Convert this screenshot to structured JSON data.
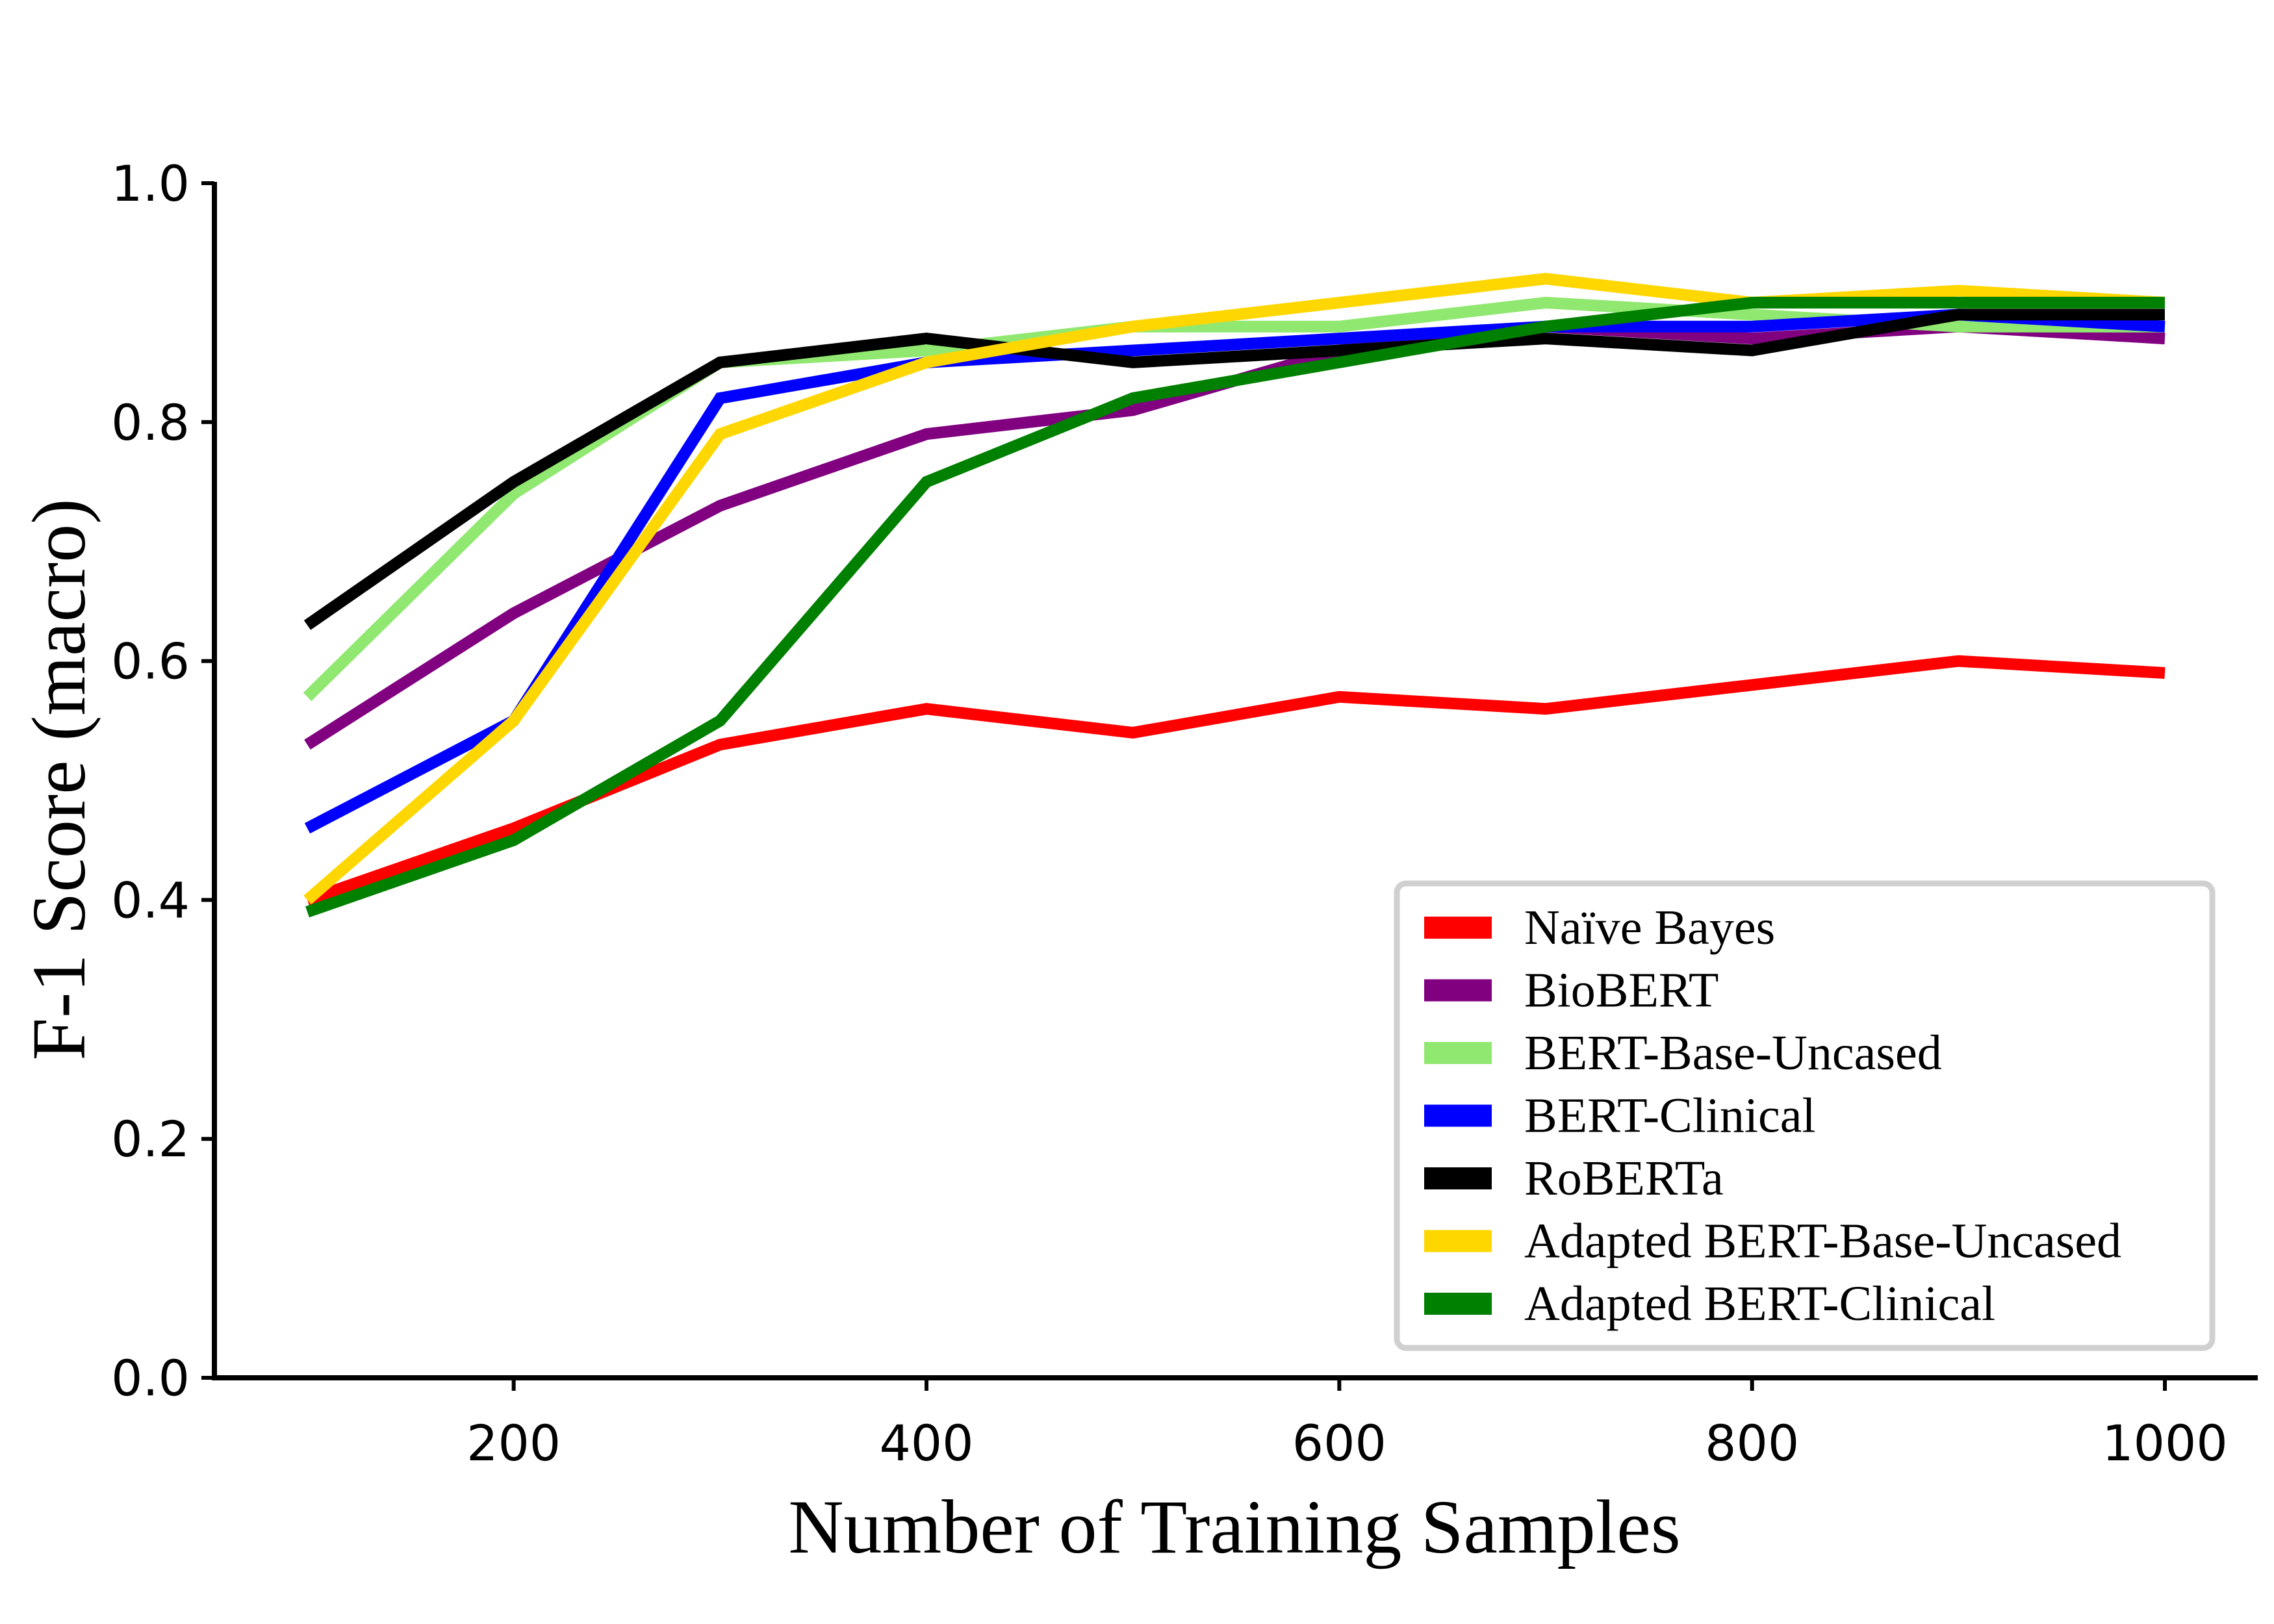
{
  "chart_data": {
    "type": "line",
    "xlabel": "Number of Training Samples",
    "ylabel": "F-1 Score (macro)",
    "xlim": [
      55,
      1045
    ],
    "ylim": [
      0.0,
      1.0
    ],
    "xticks": [
      200,
      400,
      600,
      800,
      1000
    ],
    "yticks": [
      0.0,
      0.2,
      0.4,
      0.6,
      0.8,
      1.0
    ],
    "xtick_labels": [
      "200",
      "400",
      "600",
      "800",
      "1000"
    ],
    "ytick_labels": [
      "0.0",
      "0.2",
      "0.4",
      "0.6",
      "0.8",
      "1.0"
    ],
    "grid": false,
    "legend_position": "bottom-right",
    "x": [
      100,
      200,
      300,
      400,
      500,
      600,
      700,
      800,
      900,
      1000
    ],
    "series": [
      {
        "name": "Naïve Bayes",
        "color": "#ff0000",
        "values": [
          0.4,
          0.46,
          0.53,
          0.56,
          0.54,
          0.57,
          0.56,
          0.58,
          0.6,
          0.59
        ]
      },
      {
        "name": "BioBERT",
        "color": "#800080",
        "values": [
          0.53,
          0.64,
          0.73,
          0.79,
          0.81,
          0.86,
          0.88,
          0.87,
          0.88,
          0.87
        ]
      },
      {
        "name": "BERT-Base-Uncased",
        "color": "#90e870",
        "values": [
          0.57,
          0.74,
          0.85,
          0.86,
          0.88,
          0.88,
          0.9,
          0.89,
          0.88,
          0.88
        ]
      },
      {
        "name": "BERT-Clinical",
        "color": "#0000ff",
        "values": [
          0.46,
          0.55,
          0.82,
          0.85,
          0.86,
          0.87,
          0.88,
          0.88,
          0.89,
          0.88
        ]
      },
      {
        "name": "RoBERTa",
        "color": "#000000",
        "values": [
          0.63,
          0.75,
          0.85,
          0.87,
          0.85,
          0.86,
          0.87,
          0.86,
          0.89,
          0.89
        ]
      },
      {
        "name": "Adapted BERT-Base-Uncased",
        "color": "#ffd700",
        "values": [
          0.4,
          0.55,
          0.79,
          0.85,
          0.88,
          0.9,
          0.92,
          0.9,
          0.91,
          0.9
        ]
      },
      {
        "name": "Adapted BERT-Clinical",
        "color": "#008000",
        "values": [
          0.39,
          0.45,
          0.55,
          0.75,
          0.82,
          0.85,
          0.88,
          0.9,
          0.9,
          0.9
        ]
      }
    ]
  }
}
